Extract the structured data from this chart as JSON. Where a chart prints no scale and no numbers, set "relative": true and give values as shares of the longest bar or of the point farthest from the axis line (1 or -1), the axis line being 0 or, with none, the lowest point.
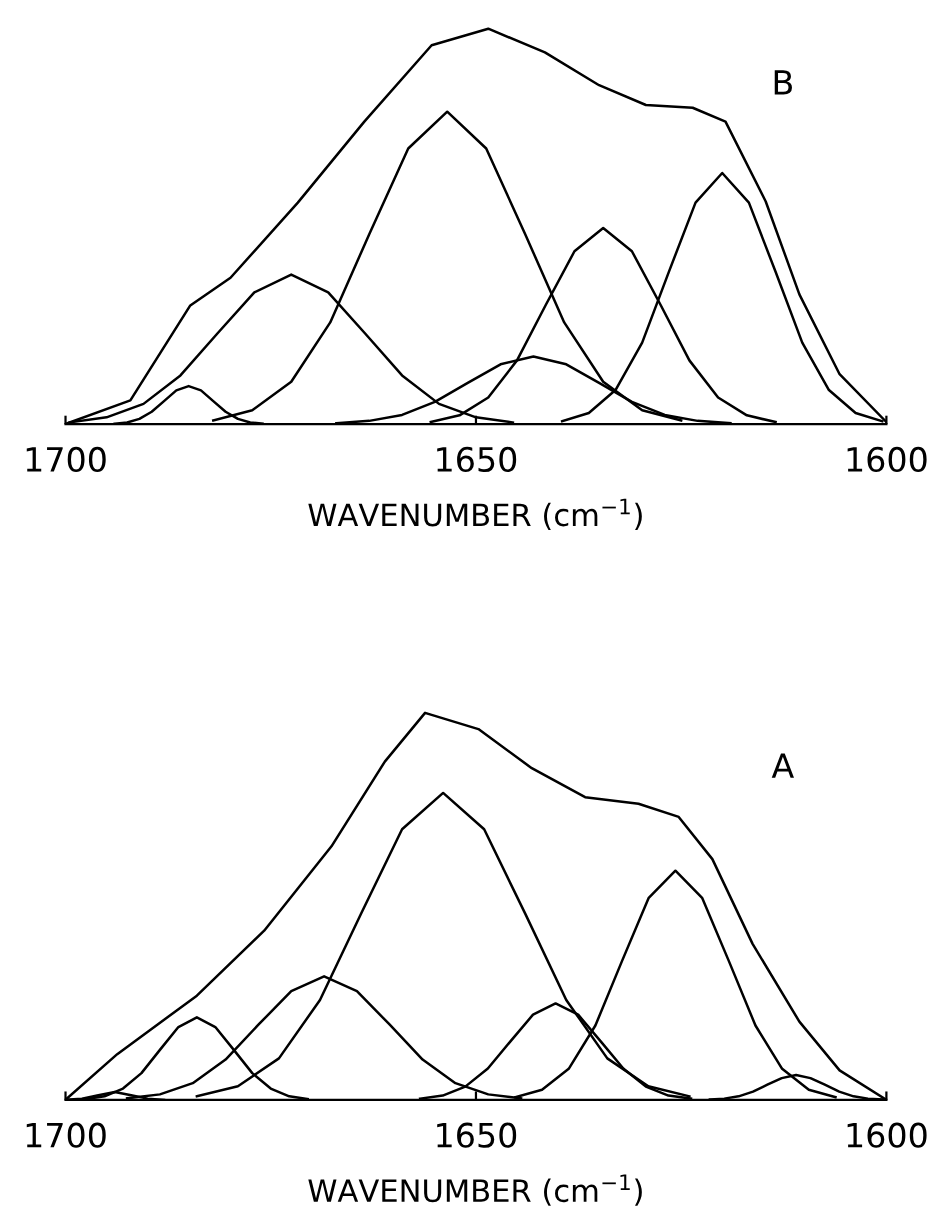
{
  "chart_data": [
    {
      "type": "line",
      "relative": true,
      "xlabel": "WAVENUMBER (cm$^{−1}$)",
      "annotations": [
        "B"
      ],
      "xlim": [
        1700,
        1600
      ],
      "xticks": [
        1700,
        1650,
        1600
      ],
      "tick_labels": "x",
      "grid": false,
      "legend": false,
      "marker": "none",
      "line_style": "solid",
      "series": [
        {
          "color": "#000000",
          "x": [
            1700,
            1692.1,
            1684.8,
            1679.9,
            1671.7,
            1663.6,
            1655.4,
            1648.5,
            1641.6,
            1635.0,
            1629.3,
            1623.6,
            1619.6,
            1614.7,
            1610.6,
            1605.7,
            1600
          ],
          "values": [
            0,
            0.06,
            0.3,
            0.37,
            0.56,
            0.765,
            0.958,
            1.0,
            0.94,
            0.857,
            0.807,
            0.8,
            0.765,
            0.563,
            0.328,
            0.126,
            0.005
          ]
        },
        {
          "color": "#000000",
          "x": [
            1694,
            1692.5,
            1691,
            1689.5,
            1688,
            1686.5,
            1685,
            1683.5,
            1682,
            1680.5,
            1679,
            1677.5,
            1676
          ],
          "values": [
            0.001,
            0.004,
            0.013,
            0.031,
            0.058,
            0.085,
            0.096,
            0.085,
            0.058,
            0.031,
            0.013,
            0.004,
            0.001
          ]
        },
        {
          "color": "#000000",
          "x": [
            1699.5,
            1695,
            1690.5,
            1686,
            1681.5,
            1677,
            1672.5,
            1668,
            1663.5,
            1659,
            1654.5,
            1650,
            1645.5
          ],
          "values": [
            0.004,
            0.017,
            0.051,
            0.123,
            0.229,
            0.333,
            0.378,
            0.333,
            0.229,
            0.123,
            0.051,
            0.017,
            0.004
          ]
        },
        {
          "color": "#000000",
          "x": [
            1682,
            1677.25,
            1672.5,
            1667.75,
            1663,
            1658.25,
            1653.5,
            1648.75,
            1644,
            1639.25,
            1634.5,
            1629.75,
            1625
          ],
          "values": [
            0.009,
            0.035,
            0.107,
            0.257,
            0.48,
            0.697,
            0.79,
            0.697,
            0.48,
            0.257,
            0.107,
            0.035,
            0.009
          ]
        },
        {
          "color": "#000000",
          "x": [
            1667,
            1663,
            1659,
            1655,
            1651,
            1647,
            1643,
            1639,
            1635,
            1631,
            1627,
            1623,
            1619
          ],
          "values": [
            0.002,
            0.008,
            0.023,
            0.056,
            0.104,
            0.151,
            0.171,
            0.151,
            0.104,
            0.056,
            0.023,
            0.008,
            0.002
          ]
        },
        {
          "color": "#000000",
          "x": [
            1655.5,
            1652,
            1648.5,
            1645,
            1641.5,
            1638,
            1634.5,
            1631,
            1627.5,
            1624,
            1620.5,
            1617,
            1613.5
          ],
          "values": [
            0.005,
            0.022,
            0.067,
            0.161,
            0.301,
            0.437,
            0.496,
            0.437,
            0.301,
            0.161,
            0.067,
            0.022,
            0.005
          ]
        },
        {
          "color": "#000000",
          "x": [
            1639.5,
            1636.25,
            1633,
            1629.75,
            1626.5,
            1623.25,
            1620,
            1616.75,
            1613.5,
            1610.25,
            1607,
            1603.75,
            1600.5
          ],
          "values": [
            0.007,
            0.028,
            0.086,
            0.206,
            0.385,
            0.56,
            0.635,
            0.56,
            0.385,
            0.206,
            0.086,
            0.028,
            0.007
          ]
        }
      ]
    },
    {
      "type": "line",
      "relative": true,
      "xlabel": "WAVENUMBER (cm$^{−1}$)",
      "annotations": [
        "A"
      ],
      "xlim": [
        1700,
        1600
      ],
      "xticks": [
        1700,
        1650,
        1600
      ],
      "tick_labels": "x",
      "grid": false,
      "legend": false,
      "marker": "none",
      "line_style": "solid",
      "series": [
        {
          "color": "#000000",
          "x": [
            1700,
            1693.7,
            1684,
            1675.8,
            1667.6,
            1661.1,
            1656.2,
            1649.7,
            1643.2,
            1636.7,
            1630.2,
            1625.3,
            1621.2,
            1616.3,
            1610.6,
            1605.7,
            1600
          ],
          "values": [
            0,
            0.118,
            0.269,
            0.437,
            0.655,
            0.874,
            1.0,
            0.958,
            0.857,
            0.782,
            0.765,
            0.731,
            0.622,
            0.403,
            0.202,
            0.076,
            0
          ]
        },
        {
          "color": "#000000",
          "x": [
            1700,
            1698,
            1696,
            1694,
            1692,
            1690,
            1688
          ],
          "values": [
            0.0,
            0.003,
            0.012,
            0.02,
            0.012,
            0.003,
            0.0
          ]
        },
        {
          "color": "#000000",
          "x": [
            1697.5,
            1695.25,
            1693,
            1690.75,
            1688.5,
            1686.25,
            1684,
            1681.75,
            1679.5,
            1677.25,
            1675,
            1672.75,
            1670.5
          ],
          "values": [
            0.002,
            0.009,
            0.029,
            0.069,
            0.129,
            0.188,
            0.213,
            0.188,
            0.129,
            0.069,
            0.029,
            0.009,
            0.002
          ]
        },
        {
          "color": "#000000",
          "x": [
            1692.5,
            1688.5,
            1684.5,
            1680.5,
            1676.5,
            1672.5,
            1668.5,
            1664.5,
            1660.5,
            1656.5,
            1652.5,
            1648.5,
            1644.5
          ],
          "values": [
            0.004,
            0.014,
            0.043,
            0.104,
            0.194,
            0.281,
            0.319,
            0.281,
            0.194,
            0.104,
            0.043,
            0.014,
            0.004
          ]
        },
        {
          "color": "#000000",
          "x": [
            1684,
            1679,
            1674,
            1669,
            1664,
            1659,
            1654,
            1649,
            1644,
            1639,
            1634,
            1629,
            1624
          ],
          "values": [
            0.009,
            0.035,
            0.107,
            0.258,
            0.481,
            0.699,
            0.793,
            0.699,
            0.481,
            0.258,
            0.107,
            0.035,
            0.009
          ]
        },
        {
          "color": "#000000",
          "x": [
            1656.8,
            1654.05,
            1651.3,
            1648.55,
            1645.8,
            1643.05,
            1640.3,
            1637.55,
            1634.8,
            1632.05,
            1629.3,
            1626.55,
            1623.8
          ],
          "values": [
            0.003,
            0.011,
            0.034,
            0.081,
            0.151,
            0.22,
            0.249,
            0.22,
            0.151,
            0.081,
            0.034,
            0.011,
            0.003
          ]
        },
        {
          "color": "#000000",
          "x": [
            1645.2,
            1641.95,
            1638.7,
            1635.45,
            1632.2,
            1628.95,
            1625.7,
            1622.45,
            1619.2,
            1615.95,
            1612.7,
            1609.45,
            1606.2
          ],
          "values": [
            0.007,
            0.026,
            0.08,
            0.192,
            0.359,
            0.522,
            0.592,
            0.522,
            0.359,
            0.192,
            0.08,
            0.026,
            0.007
          ]
        },
        {
          "color": "#000000",
          "x": [
            1621.5,
            1619.75,
            1618,
            1616.25,
            1614.5,
            1612.75,
            1611,
            1609.25,
            1607.5,
            1605.75,
            1604,
            1602.25,
            1600.5
          ],
          "values": [
            0.001,
            0.003,
            0.009,
            0.021,
            0.039,
            0.056,
            0.064,
            0.056,
            0.039,
            0.021,
            0.009,
            0.003,
            0.001
          ]
        }
      ]
    }
  ]
}
